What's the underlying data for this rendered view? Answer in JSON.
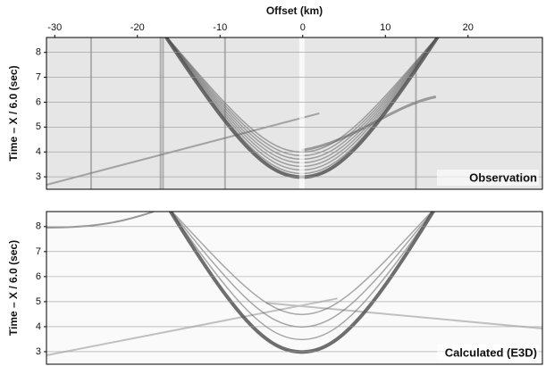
{
  "chart_data": [
    {
      "type": "seismic",
      "xlabel": "Offset (km)",
      "ylabel": "Time – X / 6.0 (sec)",
      "label": "Observation",
      "xlim": [
        -31,
        29
      ],
      "xticks": [
        -30,
        -20,
        -10,
        0,
        10,
        20
      ],
      "ylim": [
        2.5,
        8.6
      ],
      "yticks": [
        3,
        4,
        5,
        6,
        7,
        8
      ],
      "grid": true
    },
    {
      "type": "seismic",
      "ylabel": "Time – X / 6.0 (sec)",
      "label": "Calculated (E3D)",
      "xlim": [
        -31,
        29
      ],
      "ylim": [
        2.5,
        8.6
      ],
      "yticks": [
        3,
        4,
        5,
        6,
        7,
        8
      ],
      "grid": true
    }
  ]
}
